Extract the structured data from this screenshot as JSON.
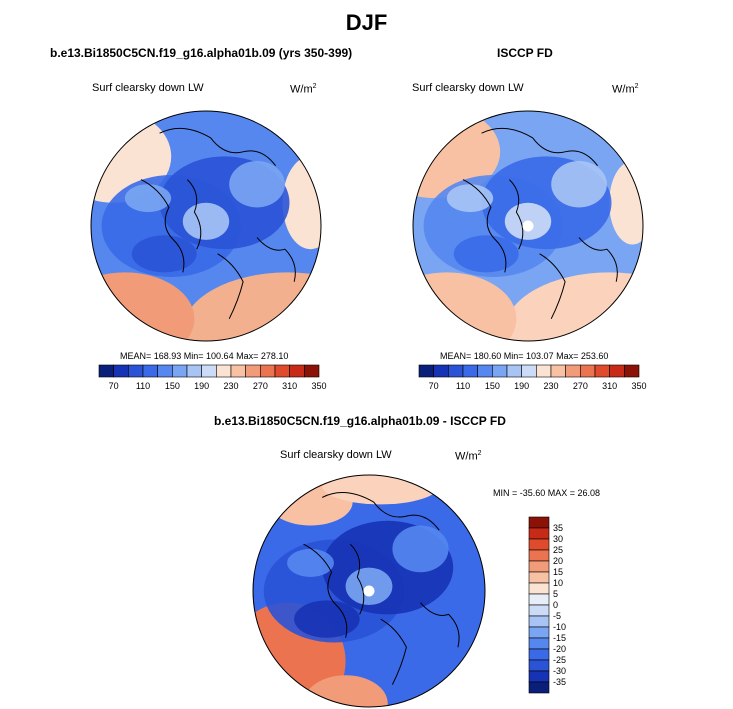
{
  "page_title": "DJF",
  "panels": [
    {
      "title": "b.e13.Bi1850C5CN.f19_g16.alpha01b.09 (yrs 350-399)",
      "variable": "Surf clearsky down LW",
      "units": "W/m",
      "units_sup": "2",
      "stats": "MEAN= 168.93  Min= 100.64  Max= 278.10"
    },
    {
      "title": "ISCCP FD",
      "variable": "Surf clearsky down LW",
      "units": "W/m",
      "units_sup": "2",
      "stats": "MEAN= 180.60  Min= 103.07  Max= 253.60"
    },
    {
      "title": "b.e13.Bi1850C5CN.f19_g16.alpha01b.09 - ISCCP FD",
      "variable": "Surf clearsky down LW",
      "units": "W/m",
      "units_sup": "2",
      "stats": "MIN = -35.60 MAX =  26.08"
    }
  ],
  "chart_data": [
    {
      "type": "heatmap",
      "projection": "north-polar-stereographic",
      "title": "b.e13.Bi1850C5CN.f19_g16.alpha01b.09 (yrs 350-399)",
      "variable": "Surf clearsky down LW (W/m2)",
      "mean": 168.93,
      "min": 100.64,
      "max": 278.1,
      "colorbar_ticks": [
        "70",
        "110",
        "150",
        "190",
        "230",
        "270",
        "310",
        "350"
      ],
      "colorbar_colors": [
        "#0a1f7a",
        "#1733b5",
        "#2a53d6",
        "#3a6ae8",
        "#5587ef",
        "#7aa5f2",
        "#a7c4f5",
        "#cddcf6",
        "#fbe3d4",
        "#f9c1a3",
        "#f29b78",
        "#eb7350",
        "#df4b2c",
        "#c72b18",
        "#8c1208"
      ],
      "map_palette": [
        "#2a53d6",
        "#3a6ae8",
        "#5587ef",
        "#7aa5f2",
        "#a7c4f5"
      ]
    },
    {
      "type": "heatmap",
      "projection": "north-polar-stereographic",
      "title": "ISCCP FD",
      "variable": "Surf clearsky down LW (W/m2)",
      "mean": 180.6,
      "min": 103.07,
      "max": 253.6,
      "colorbar_ticks": [
        "70",
        "110",
        "150",
        "190",
        "230",
        "270",
        "310",
        "350"
      ],
      "colorbar_colors": [
        "#0a1f7a",
        "#1733b5",
        "#2a53d6",
        "#3a6ae8",
        "#5587ef",
        "#7aa5f2",
        "#a7c4f5",
        "#cddcf6",
        "#fbe3d4",
        "#f9c1a3",
        "#f29b78",
        "#eb7350",
        "#df4b2c",
        "#c72b18",
        "#8c1208"
      ],
      "map_palette": [
        "#3a6ae8",
        "#5587ef",
        "#7aa5f2",
        "#a7c4f5",
        "#cddcf6"
      ]
    },
    {
      "type": "heatmap",
      "projection": "north-polar-stereographic",
      "title": "b.e13.Bi1850C5CN.f19_g16.alpha01b.09 - ISCCP FD",
      "variable": "Surf clearsky down LW (W/m2)",
      "min": -35.6,
      "max": 26.08,
      "colorbar_ticks": [
        "35",
        "30",
        "25",
        "20",
        "15",
        "10",
        "5",
        "0",
        "-5",
        "-10",
        "-15",
        "-20",
        "-25",
        "-30",
        "-35"
      ],
      "colorbar_colors": [
        "#8c1208",
        "#c72b18",
        "#df4b2c",
        "#eb7350",
        "#f29b78",
        "#f9c1a3",
        "#fbe3d4",
        "#e8eef8",
        "#cddcf6",
        "#a7c4f5",
        "#7aa5f2",
        "#5587ef",
        "#3a6ae8",
        "#2a53d6",
        "#1733b5",
        "#0a1f7a"
      ],
      "map_palette": [
        "#1733b5",
        "#2a53d6",
        "#3a6ae8",
        "#5587ef",
        "#7aa5f2"
      ]
    }
  ]
}
